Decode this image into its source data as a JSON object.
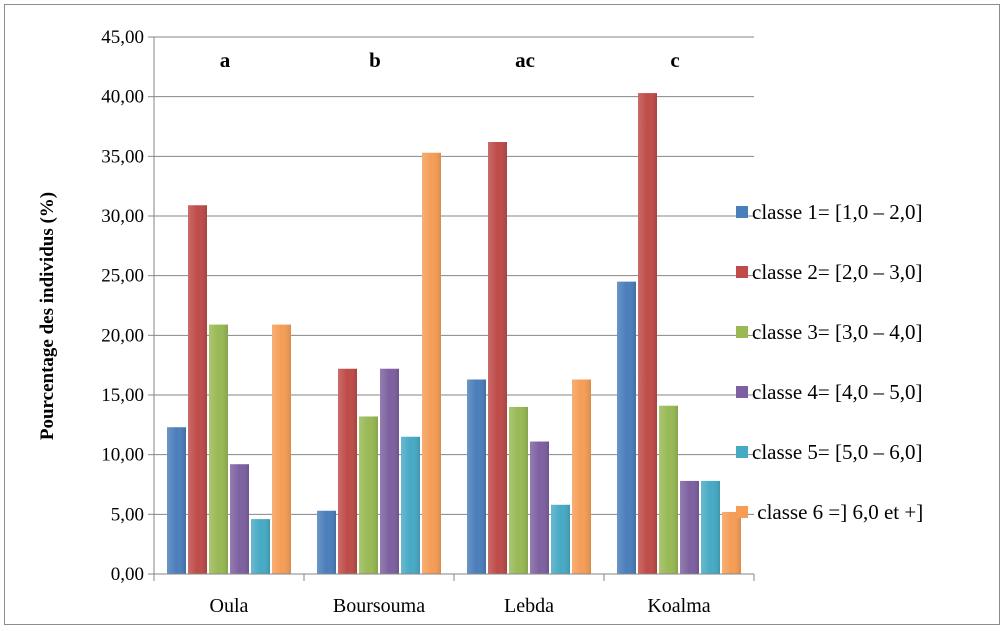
{
  "chart_data": {
    "type": "bar",
    "title": "",
    "xlabel": "",
    "ylabel": "Pourcentage des individus (%)",
    "ylim": [
      0,
      45
    ],
    "yticks": [
      "0,00",
      "5,00",
      "10,00",
      "15,00",
      "20,00",
      "25,00",
      "30,00",
      "35,00",
      "40,00",
      "45,00"
    ],
    "grid": true,
    "legend_position": "right",
    "categories": [
      "Oula",
      "Boursouma",
      "Lebda",
      "Koalma"
    ],
    "group_letters": [
      "a",
      "b",
      "ac",
      "c"
    ],
    "series": [
      {
        "name": "classe 1= [1,0 – 2,0]",
        "color": "#4a7ebb",
        "values": [
          12.3,
          5.3,
          16.3,
          24.5
        ]
      },
      {
        "name": "classe 2= [2,0 – 3,0]",
        "color": "#be4b48",
        "values": [
          30.9,
          17.2,
          36.2,
          40.3
        ]
      },
      {
        "name": "classe 3= [3,0 – 4,0]",
        "color": "#98b954",
        "values": [
          20.9,
          13.2,
          14.0,
          14.1
        ]
      },
      {
        "name": "classe 4= [4,0 – 5,0]",
        "color": "#7d60a0",
        "values": [
          9.2,
          17.2,
          11.1,
          7.8
        ]
      },
      {
        "name": "classe 5= [5,0 – 6,0]",
        "color": "#46aac5",
        "values": [
          4.6,
          11.5,
          5.8,
          7.8
        ]
      },
      {
        "name": " classe 6 =] 6,0 et +]",
        "color": "#f59d56",
        "values": [
          20.9,
          35.3,
          16.3,
          5.2
        ]
      }
    ]
  }
}
